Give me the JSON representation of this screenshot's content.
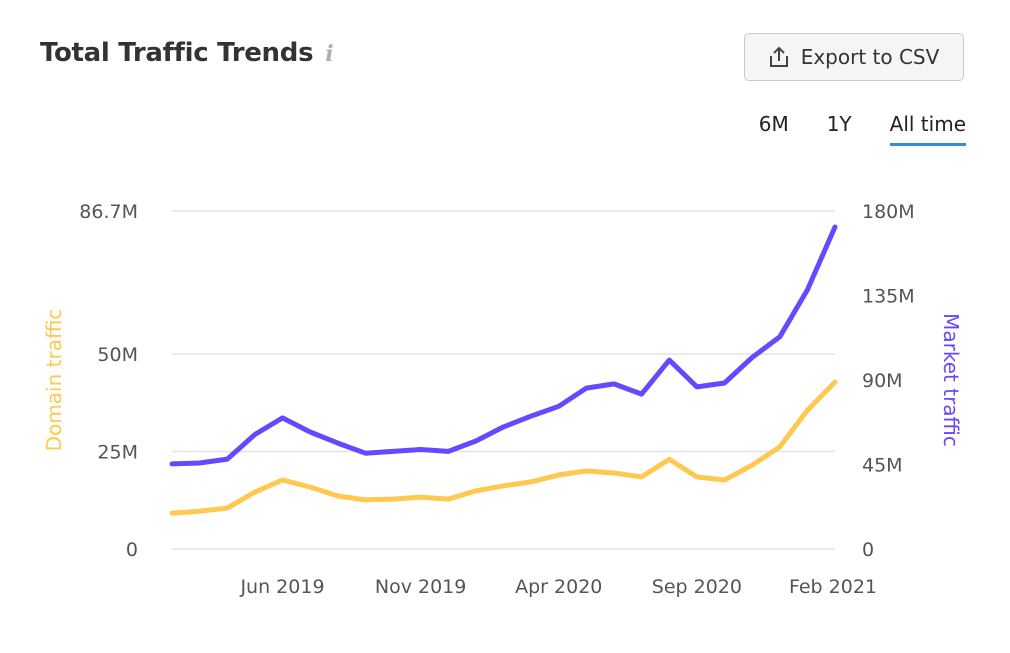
{
  "header": {
    "title": "Total Traffic Trends",
    "info_icon": "info-icon",
    "export_label": "Export to CSV",
    "export_icon": "upload-icon"
  },
  "tabs": [
    {
      "label": "6M",
      "active": false
    },
    {
      "label": "1Y",
      "active": false
    },
    {
      "label": "All time",
      "active": true
    }
  ],
  "colors": {
    "domain": "#ffc84f",
    "market": "#6549ff",
    "active_tab": "#2f8de4"
  },
  "chart_data": {
    "type": "line",
    "x": [
      "Feb 2019",
      "Mar 2019",
      "Apr 2019",
      "May 2019",
      "Jun 2019",
      "Jul 2019",
      "Aug 2019",
      "Sep 2019",
      "Oct 2019",
      "Nov 2019",
      "Dec 2019",
      "Jan 2020",
      "Feb 2020",
      "Mar 2020",
      "Apr 2020",
      "May 2020",
      "Jun 2020",
      "Jul 2020",
      "Aug 2020",
      "Sep 2020",
      "Oct 2020",
      "Nov 2020",
      "Dec 2020",
      "Jan 2021",
      "Feb 2021"
    ],
    "xticks": [
      "Jun 2019",
      "Nov 2019",
      "Apr 2020",
      "Sep 2020",
      "Feb 2021"
    ],
    "series": [
      {
        "name": "Domain traffic",
        "axis": "left",
        "color": "#ffc84f",
        "values": [
          9.2,
          9.7,
          10.5,
          14.6,
          17.7,
          15.9,
          13.6,
          12.6,
          12.8,
          13.3,
          12.8,
          14.9,
          16.2,
          17.2,
          19,
          20,
          19.5,
          18.5,
          23,
          18.5,
          17.7,
          21.5,
          26.2,
          35.6,
          42.8
        ]
      },
      {
        "name": "Market traffic",
        "axis": "right",
        "color": "#6549ff",
        "values": [
          45.3,
          45.8,
          47.9,
          61,
          69.8,
          62.3,
          56.4,
          51,
          52,
          53,
          52,
          57.5,
          65,
          70.8,
          76,
          85.7,
          87.9,
          82.5,
          100.6,
          86.3,
          88.4,
          102,
          113,
          138,
          171.5
        ]
      }
    ],
    "left_axis": {
      "label": "Domain traffic",
      "range": [
        0,
        86.7
      ],
      "ticks": [
        {
          "v": 0,
          "label": "0"
        },
        {
          "v": 25,
          "label": "25M"
        },
        {
          "v": 50,
          "label": "50M"
        },
        {
          "v": 86.7,
          "label": "86.7M"
        }
      ]
    },
    "right_axis": {
      "label": "Market traffic",
      "range": [
        0,
        180
      ],
      "ticks": [
        {
          "v": 0,
          "label": "0"
        },
        {
          "v": 45,
          "label": "45M"
        },
        {
          "v": 90,
          "label": "90M"
        },
        {
          "v": 135,
          "label": "135M"
        },
        {
          "v": 180,
          "label": "180M"
        }
      ]
    },
    "grid": true
  }
}
